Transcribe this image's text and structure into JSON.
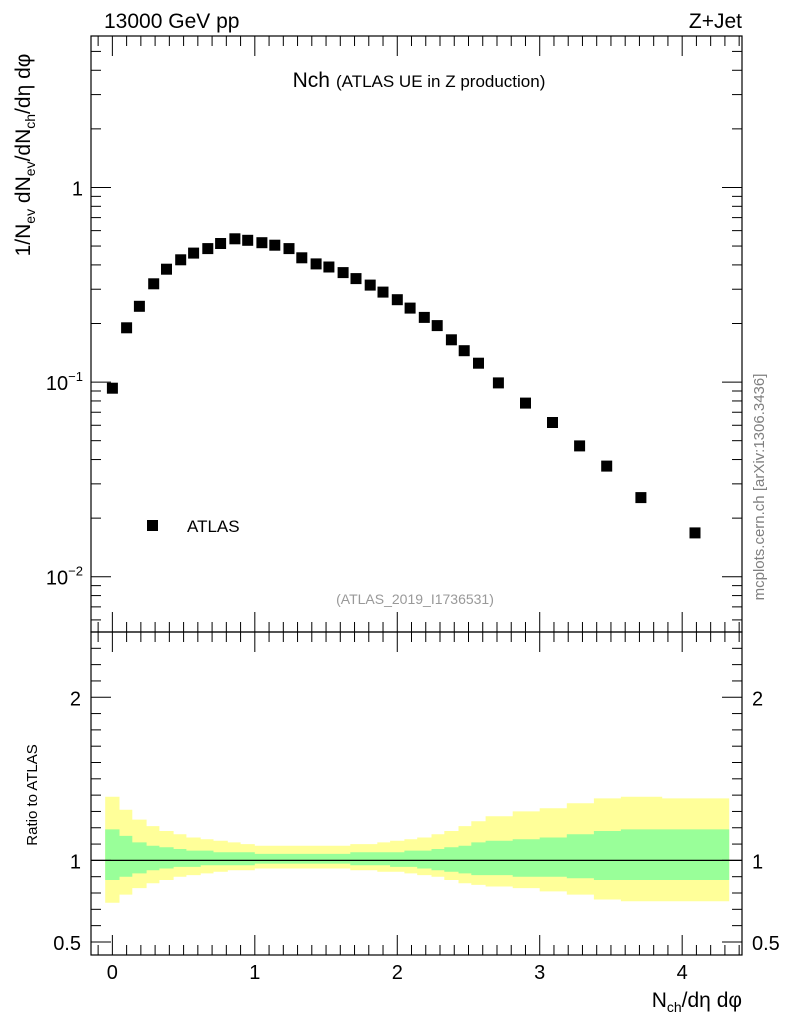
{
  "header": {
    "left_label": "13000 GeV pp",
    "right_label": "Z+Jet"
  },
  "side_label": "mcplots.cern.ch [arXiv:1306.3436]",
  "chart_data": [
    {
      "type": "scatter",
      "title_main": "Nch",
      "title_sub": "(ATLAS UE in Z production)",
      "ylabel": "1/Nev dNev/dNch/dη dφ",
      "yscale": "log",
      "ylim": [
        0.0052,
        6.0
      ],
      "xlim": [
        -0.15,
        4.42
      ],
      "ytick_labels": [
        "1",
        "10^-1",
        "10^-2"
      ],
      "ytick_values": [
        1,
        0.1,
        0.01
      ],
      "legend": {
        "position": "bottom-left",
        "entries": [
          "ATLAS"
        ]
      },
      "watermark": "(ATLAS_2019_I1736531)",
      "series": [
        {
          "name": "ATLAS",
          "x": [
            0.0,
            0.1,
            0.19,
            0.29,
            0.38,
            0.48,
            0.57,
            0.67,
            0.76,
            0.86,
            0.95,
            1.05,
            1.14,
            1.24,
            1.33,
            1.43,
            1.52,
            1.62,
            1.71,
            1.81,
            1.9,
            2.0,
            2.09,
            2.19,
            2.28,
            2.38,
            2.47,
            2.57,
            2.71,
            2.9,
            3.09,
            3.28,
            3.47,
            3.71,
            4.09
          ],
          "y": [
            0.093,
            0.19,
            0.245,
            0.32,
            0.38,
            0.425,
            0.46,
            0.485,
            0.515,
            0.545,
            0.535,
            0.52,
            0.505,
            0.485,
            0.435,
            0.405,
            0.39,
            0.365,
            0.34,
            0.315,
            0.29,
            0.265,
            0.24,
            0.215,
            0.195,
            0.165,
            0.145,
            0.125,
            0.099,
            0.078,
            0.062,
            0.047,
            0.037,
            0.0255,
            0.0168
          ]
        }
      ]
    },
    {
      "type": "area",
      "ylabel": "Ratio to ATLAS",
      "xlabel": "Nch/dη dφ",
      "ylim": [
        0.42,
        2.4
      ],
      "xlim": [
        -0.15,
        4.42
      ],
      "ytick_labels": [
        "2",
        "1",
        "0.5"
      ],
      "ytick_values": [
        2,
        1,
        0.5
      ],
      "xtick_labels": [
        "0",
        "1",
        "2",
        "3",
        "4"
      ],
      "xtick_values": [
        0,
        1,
        2,
        3,
        4
      ],
      "reference_line": 1,
      "bands": {
        "edges": [
          -0.05,
          0.05,
          0.14,
          0.24,
          0.33,
          0.43,
          0.52,
          0.62,
          0.71,
          0.81,
          0.9,
          1.0,
          1.1,
          1.19,
          1.29,
          1.38,
          1.48,
          1.57,
          1.67,
          1.76,
          1.86,
          1.95,
          2.05,
          2.14,
          2.24,
          2.33,
          2.43,
          2.52,
          2.62,
          2.81,
          3.0,
          3.19,
          3.38,
          3.57,
          3.86,
          4.33
        ],
        "yellow_up": [
          1.39,
          1.31,
          1.25,
          1.21,
          1.18,
          1.16,
          1.14,
          1.13,
          1.12,
          1.11,
          1.1,
          1.09,
          1.09,
          1.09,
          1.09,
          1.09,
          1.09,
          1.09,
          1.1,
          1.1,
          1.11,
          1.12,
          1.13,
          1.14,
          1.16,
          1.18,
          1.21,
          1.24,
          1.27,
          1.3,
          1.32,
          1.35,
          1.38,
          1.39,
          1.38
        ],
        "yellow_down": [
          0.74,
          0.79,
          0.83,
          0.86,
          0.88,
          0.9,
          0.91,
          0.92,
          0.93,
          0.94,
          0.94,
          0.95,
          0.95,
          0.95,
          0.95,
          0.95,
          0.95,
          0.95,
          0.94,
          0.94,
          0.93,
          0.93,
          0.92,
          0.91,
          0.9,
          0.88,
          0.86,
          0.85,
          0.84,
          0.83,
          0.81,
          0.79,
          0.76,
          0.75,
          0.75
        ],
        "green_up": [
          1.19,
          1.15,
          1.11,
          1.09,
          1.08,
          1.07,
          1.06,
          1.06,
          1.05,
          1.05,
          1.05,
          1.04,
          1.04,
          1.04,
          1.04,
          1.04,
          1.04,
          1.04,
          1.05,
          1.05,
          1.05,
          1.05,
          1.06,
          1.06,
          1.07,
          1.08,
          1.09,
          1.11,
          1.12,
          1.13,
          1.14,
          1.16,
          1.18,
          1.19,
          1.19
        ],
        "green_down": [
          0.88,
          0.9,
          0.92,
          0.94,
          0.95,
          0.96,
          0.96,
          0.97,
          0.97,
          0.97,
          0.97,
          0.98,
          0.98,
          0.98,
          0.98,
          0.98,
          0.98,
          0.98,
          0.97,
          0.97,
          0.97,
          0.96,
          0.96,
          0.95,
          0.94,
          0.93,
          0.92,
          0.91,
          0.91,
          0.9,
          0.9,
          0.89,
          0.88,
          0.88,
          0.88
        ],
        "yellow_color": "#ffff99",
        "green_color": "#99ff99"
      }
    }
  ]
}
